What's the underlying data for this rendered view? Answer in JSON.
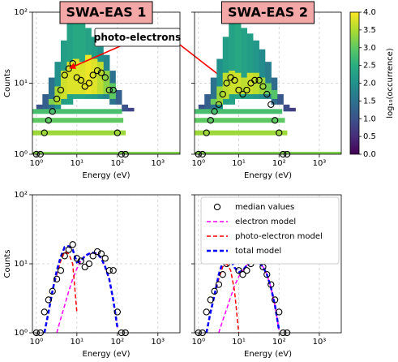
{
  "chart_data": [
    {
      "type": "heatmap",
      "title": "SWA-EAS 1",
      "annotation": "photo-electrons",
      "xlabel": "Energy (eV)",
      "ylabel": "Counts",
      "xscale": "log",
      "yscale": "log",
      "grid": true,
      "xlim": [
        0.8,
        3500
      ],
      "ylim": [
        1,
        100
      ],
      "xticks": [
        {
          "value": 1,
          "label": "10⁰"
        },
        {
          "value": 10,
          "label": "10¹"
        },
        {
          "value": 100,
          "label": "10²"
        },
        {
          "value": 1000,
          "label": "10³"
        }
      ],
      "yticks": [
        {
          "value": 1,
          "label": "10⁰"
        },
        {
          "value": 10,
          "label": "10¹"
        },
        {
          "value": 100,
          "label": "10²"
        }
      ],
      "energy_edges": [
        1,
        1.41,
        2,
        2.83,
        4,
        5.66,
        8,
        11.3,
        16,
        22.6,
        32,
        45,
        64,
        90,
        128,
        181,
        256
      ],
      "band_low": [
        4,
        4,
        4,
        4,
        5,
        5,
        6,
        6,
        6,
        6,
        6,
        6,
        5,
        5,
        4,
        4
      ],
      "band_high": [
        5,
        7,
        12,
        20,
        40,
        70,
        80,
        70,
        60,
        45,
        35,
        25,
        15,
        8,
        5,
        4.5
      ],
      "band_z": [
        1,
        1.2,
        1.5,
        2,
        2.2,
        2.3,
        2.4,
        2.4,
        2.3,
        2.2,
        2,
        1.8,
        1.5,
        1.2,
        1,
        0.8
      ],
      "core_low": [
        null,
        null,
        5,
        5,
        6,
        7,
        7,
        7,
        7,
        7,
        7,
        7,
        6,
        null,
        null,
        null
      ],
      "core_high": [
        null,
        null,
        6,
        9,
        15,
        20,
        22,
        20,
        25,
        22,
        20,
        15,
        10,
        null,
        null,
        null
      ],
      "core_z": [
        null,
        null,
        3.2,
        3.5,
        3.7,
        3.8,
        3.8,
        3.8,
        3.9,
        3.8,
        3.6,
        3.3,
        3,
        null,
        null,
        null
      ],
      "stripe_counts": [
        1,
        2,
        3,
        4
      ],
      "stripe_end": [
        3500,
        160,
        140,
        130
      ],
      "stripe_z": [
        3.2,
        3.4,
        3.0,
        2.8
      ],
      "x": [
        1.0,
        1.26,
        1.58,
        2.0,
        2.5,
        3.2,
        4.0,
        5.0,
        6.3,
        7.9,
        10,
        12.6,
        15.8,
        20,
        25,
        32,
        40,
        50,
        63,
        79,
        100,
        126,
        158
      ],
      "medians": [
        1,
        1,
        2,
        3,
        4,
        6,
        8,
        13,
        16,
        19,
        12,
        11,
        9,
        10,
        13,
        15,
        14,
        12,
        8,
        8,
        2,
        1,
        1
      ]
    },
    {
      "type": "heatmap",
      "title": "SWA-EAS 2",
      "xlabel": "Energy (eV)",
      "xscale": "log",
      "yscale": "log",
      "grid": true,
      "xlim": [
        0.8,
        3500
      ],
      "ylim": [
        1,
        100
      ],
      "xticks": [
        {
          "value": 1,
          "label": "10⁰"
        },
        {
          "value": 10,
          "label": "10¹"
        },
        {
          "value": 100,
          "label": "10²"
        },
        {
          "value": 1000,
          "label": "10³"
        }
      ],
      "yticks": [
        1,
        10,
        100
      ],
      "energy_edges": [
        1,
        1.41,
        2,
        2.83,
        4,
        5.66,
        8,
        11.3,
        16,
        22.6,
        32,
        45,
        64,
        90,
        128,
        181,
        256
      ],
      "band_low": [
        4,
        4,
        4,
        4,
        5,
        5,
        6,
        6,
        6,
        6,
        6,
        6,
        5,
        5,
        4,
        4
      ],
      "band_high": [
        5,
        7,
        12,
        22,
        45,
        80,
        80,
        60,
        50,
        40,
        30,
        20,
        12,
        7,
        5,
        4.5
      ],
      "band_z": [
        1,
        1.2,
        1.5,
        2,
        2.2,
        2.3,
        2.4,
        2.3,
        2.2,
        2.1,
        1.9,
        1.7,
        1.4,
        1.1,
        0.9,
        0.7
      ],
      "core_low": [
        null,
        null,
        5,
        5,
        6,
        7,
        7,
        7,
        7,
        7,
        7,
        7,
        6,
        null,
        null,
        null
      ],
      "core_high": [
        null,
        null,
        6,
        9,
        14,
        15,
        14,
        12,
        14,
        14,
        12,
        10,
        8,
        null,
        null,
        null
      ],
      "core_z": [
        null,
        null,
        3.1,
        3.4,
        3.6,
        3.7,
        3.7,
        3.6,
        3.7,
        3.6,
        3.4,
        3.1,
        2.9,
        null,
        null,
        null
      ],
      "stripe_counts": [
        1,
        2,
        3,
        4
      ],
      "stripe_end": [
        3500,
        160,
        140,
        120
      ],
      "stripe_z": [
        3.2,
        3.4,
        3.0,
        2.8
      ],
      "x": [
        1.0,
        1.26,
        1.58,
        2.0,
        2.5,
        3.2,
        4.0,
        5.0,
        6.3,
        7.9,
        10,
        12.6,
        15.8,
        20,
        25,
        32,
        40,
        50,
        63,
        79,
        100,
        126,
        158
      ],
      "medians": [
        1,
        1,
        2,
        3,
        4,
        5,
        7,
        10,
        12,
        11,
        8,
        7,
        8,
        10,
        11,
        11,
        9,
        7,
        5,
        3,
        2,
        1,
        1
      ],
      "colorbar": {
        "label": "log₁₀(occurrence)",
        "lim": [
          0,
          4
        ],
        "ticks": [
          {
            "value": 0,
            "label": "0.0"
          },
          {
            "value": 0.5,
            "label": "0.5"
          },
          {
            "value": 1,
            "label": "1.0"
          },
          {
            "value": 1.5,
            "label": "1.5"
          },
          {
            "value": 2,
            "label": "2.0"
          },
          {
            "value": 2.5,
            "label": "2.5"
          },
          {
            "value": 3,
            "label": "3.0"
          },
          {
            "value": 3.5,
            "label": "3.5"
          },
          {
            "value": 4,
            "label": "4.0"
          }
        ]
      }
    },
    {
      "type": "line",
      "xlabel": "Energy (eV)",
      "ylabel": "Counts",
      "xscale": "log",
      "yscale": "log",
      "grid": true,
      "xlim": [
        0.8,
        3500
      ],
      "ylim": [
        1,
        100
      ],
      "xticks": [
        {
          "value": 1,
          "label": "10⁰"
        },
        {
          "value": 10,
          "label": "10¹"
        },
        {
          "value": 100,
          "label": "10²"
        },
        {
          "value": 1000,
          "label": "10³"
        }
      ],
      "yticks": [
        {
          "value": 1,
          "label": "10⁰"
        },
        {
          "value": 10,
          "label": "10¹"
        },
        {
          "value": 100,
          "label": "10²"
        }
      ],
      "x": [
        1.0,
        1.26,
        1.58,
        2.0,
        2.5,
        3.2,
        4.0,
        5.0,
        6.3,
        7.9,
        10,
        12.6,
        15.8,
        20,
        25,
        32,
        40,
        50,
        63,
        79,
        100,
        126,
        158
      ],
      "series": [
        {
          "color": "#000000",
          "marker": "circle",
          "values": [
            1,
            1,
            2,
            3,
            4,
            6,
            8,
            13,
            16,
            19,
            12,
            11,
            9,
            10,
            13,
            15,
            14,
            12,
            8,
            8,
            2,
            1,
            1
          ]
        },
        {
          "color": "#ff00ff",
          "dash": true,
          "values": [
            null,
            null,
            null,
            null,
            null,
            1.0,
            1.6,
            2.5,
            4,
            6,
            8.5,
            11,
            13,
            14,
            14.5,
            14,
            12,
            9,
            6,
            3,
            1.2,
            null,
            null
          ]
        },
        {
          "color": "#ff0000",
          "dash": true,
          "values": [
            null,
            null,
            1.0,
            2,
            4,
            7,
            11,
            15,
            14,
            10,
            2,
            null,
            null,
            null,
            null,
            null,
            null,
            null,
            null,
            null,
            null,
            null,
            null
          ]
        },
        {
          "color": "#0000ff",
          "dash": true,
          "width": 2.5,
          "values": [
            null,
            null,
            1.0,
            2,
            4,
            8,
            12.6,
            17.5,
            18,
            16,
            10.5,
            11,
            13,
            14,
            14.5,
            14,
            12,
            9,
            6,
            3,
            1.2,
            null,
            null
          ]
        }
      ]
    },
    {
      "type": "line",
      "xlabel": "Energy (eV)",
      "legend": "upper right",
      "xscale": "log",
      "yscale": "log",
      "grid": true,
      "xlim": [
        0.8,
        3500
      ],
      "ylim": [
        1,
        100
      ],
      "xticks": [
        {
          "value": 1,
          "label": "10⁰"
        },
        {
          "value": 10,
          "label": "10¹"
        },
        {
          "value": 100,
          "label": "10²"
        },
        {
          "value": 1000,
          "label": "10³"
        }
      ],
      "yticks": [
        1,
        10,
        100
      ],
      "x": [
        1.0,
        1.26,
        1.58,
        2.0,
        2.5,
        3.2,
        4.0,
        5.0,
        6.3,
        7.9,
        10,
        12.6,
        15.8,
        20,
        25,
        32,
        40,
        50,
        63,
        79,
        100,
        126,
        158
      ],
      "series": [
        {
          "name": "median values",
          "color": "#000000",
          "marker": "circle",
          "values": [
            1,
            1,
            2,
            3,
            4,
            5,
            7,
            10,
            12,
            11,
            8,
            7,
            8,
            10,
            11,
            11,
            9,
            7,
            5,
            3,
            2,
            1,
            1
          ]
        },
        {
          "name": "electron model",
          "color": "#ff00ff",
          "dash": true,
          "values": [
            null,
            null,
            null,
            null,
            null,
            1.0,
            1.5,
            2.2,
            3.3,
            4.8,
            6.5,
            8,
            9.5,
            10.5,
            11,
            10.5,
            9,
            7,
            4.5,
            2.5,
            1.1,
            null,
            null
          ]
        },
        {
          "name": "photo-electron model",
          "color": "#ff0000",
          "dash": true,
          "values": [
            null,
            null,
            1.0,
            2,
            3.5,
            6,
            9,
            10,
            8,
            4,
            1.0,
            null,
            null,
            null,
            null,
            null,
            null,
            null,
            null,
            null,
            null,
            null,
            null
          ]
        },
        {
          "name": "total model",
          "color": "#0000ff",
          "dash": true,
          "width": 2.5,
          "values": [
            null,
            null,
            1.0,
            2,
            3.5,
            7,
            10.5,
            12.2,
            11.3,
            8.8,
            7.5,
            8,
            9.5,
            10.5,
            11,
            10.5,
            9,
            7,
            4.5,
            2.5,
            1.1,
            null,
            null
          ]
        }
      ]
    }
  ]
}
